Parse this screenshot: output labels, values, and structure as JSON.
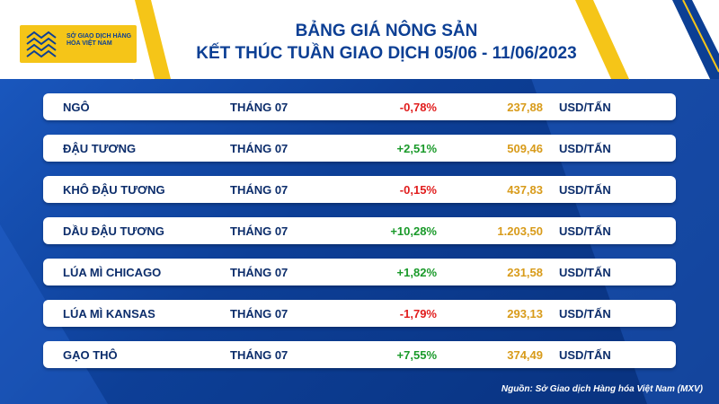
{
  "header": {
    "logo_text": "SỞ GIAO DỊCH HÀNG HÓA VIỆT NAM",
    "title_line1": "BẢNG GIÁ NÔNG SẢN",
    "title_line2": "KẾT THÚC TUẦN GIAO DỊCH 05/06 - 11/06/2023"
  },
  "colors": {
    "brand_blue": "#0c3f94",
    "negative": "#e11d1d",
    "positive": "#1a9a2a",
    "price": "#d89b1a",
    "accent_yellow": "#f5c518"
  },
  "rows": [
    {
      "name": "NGÔ",
      "month": "THÁNG 07",
      "change": "-0,78%",
      "direction": "neg",
      "price": "237,88",
      "unit": "USD/TẤN"
    },
    {
      "name": "ĐẬU TƯƠNG",
      "month": "THÁNG 07",
      "change": "+2,51%",
      "direction": "pos",
      "price": "509,46",
      "unit": "USD/TẤN"
    },
    {
      "name": "KHÔ ĐẬU TƯƠNG",
      "month": "THÁNG 07",
      "change": "-0,15%",
      "direction": "neg",
      "price": "437,83",
      "unit": "USD/TẤN"
    },
    {
      "name": "DẦU ĐẬU TƯƠNG",
      "month": "THÁNG 07",
      "change": "+10,28%",
      "direction": "pos",
      "price": "1.203,50",
      "unit": "USD/TẤN"
    },
    {
      "name": "LÚA MÌ CHICAGO",
      "month": "THÁNG 07",
      "change": "+1,82%",
      "direction": "pos",
      "price": "231,58",
      "unit": "USD/TẤN"
    },
    {
      "name": "LÚA MÌ KANSAS",
      "month": "THÁNG 07",
      "change": "-1,79%",
      "direction": "neg",
      "price": "293,13",
      "unit": "USD/TẤN"
    },
    {
      "name": "GẠO THÔ",
      "month": "THÁNG 07",
      "change": "+7,55%",
      "direction": "pos",
      "price": "374,49",
      "unit": "USD/TẤN"
    }
  ],
  "footer": {
    "source": "Nguồn: Sở Giao dịch Hàng hóa Việt Nam (MXV)"
  }
}
